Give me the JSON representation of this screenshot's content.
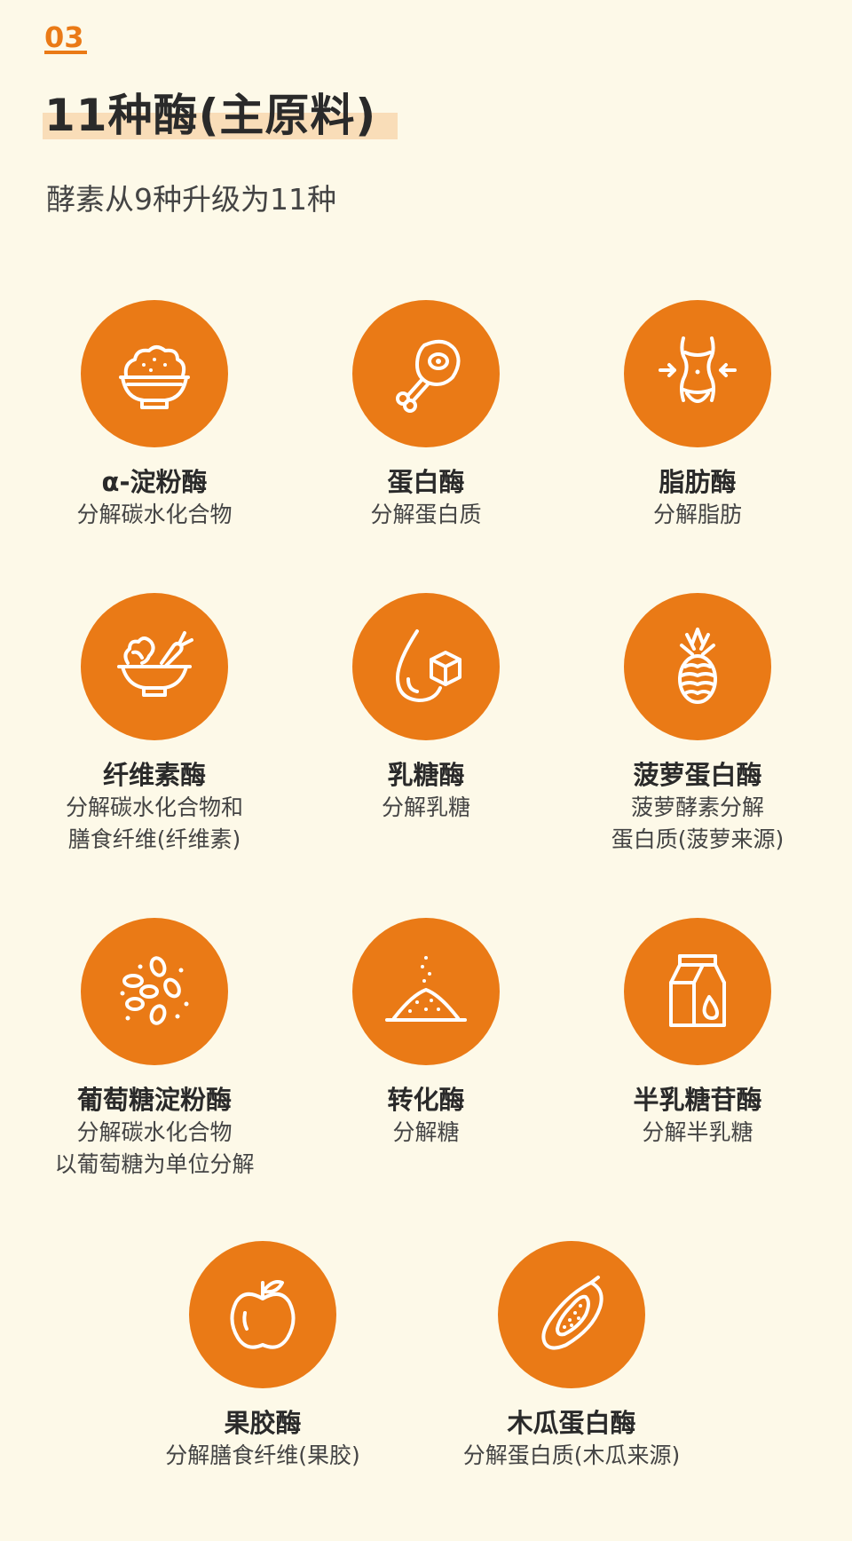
{
  "header": {
    "section_number": "03",
    "title": "11种酶(主原料)",
    "subtitle": "酵素从9种升级为11种"
  },
  "enzymes": [
    {
      "name": "α-淀粉酶",
      "desc": [
        "分解碳水化合物"
      ],
      "icon": "rice-bowl-icon"
    },
    {
      "name": "蛋白酶",
      "desc": [
        "分解蛋白质"
      ],
      "icon": "meat-drumstick-icon"
    },
    {
      "name": "脂肪酶",
      "desc": [
        "分解脂肪"
      ],
      "icon": "waist-body-icon"
    },
    {
      "name": "纤维素酶",
      "desc": [
        "分解碳水化合物和",
        "膳食纤维(纤维素)"
      ],
      "icon": "salad-bowl-icon"
    },
    {
      "name": "乳糖酶",
      "desc": [
        "分解乳糖"
      ],
      "icon": "drop-sugar-cube-icon"
    },
    {
      "name": "菠萝蛋白酶",
      "desc": [
        "菠萝酵素分解",
        "蛋白质(菠萝来源)"
      ],
      "icon": "pineapple-icon"
    },
    {
      "name": "葡萄糖淀粉酶",
      "desc": [
        "分解碳水化合物",
        "以葡萄糖为单位分解"
      ],
      "icon": "grains-icon"
    },
    {
      "name": "转化酶",
      "desc": [
        "分解糖"
      ],
      "icon": "sugar-pile-icon"
    },
    {
      "name": "半乳糖苷酶",
      "desc": [
        "分解半乳糖"
      ],
      "icon": "milk-carton-icon"
    },
    {
      "name": "果胶酶",
      "desc": [
        "分解膳食纤维(果胶)"
      ],
      "icon": "apple-icon"
    },
    {
      "name": "木瓜蛋白酶",
      "desc": [
        "分解蛋白质(木瓜来源)"
      ],
      "icon": "papaya-icon"
    }
  ],
  "colors": {
    "accent": "#ea7a16",
    "background": "#fdf9e8",
    "highlight": "#f9ddb8"
  }
}
